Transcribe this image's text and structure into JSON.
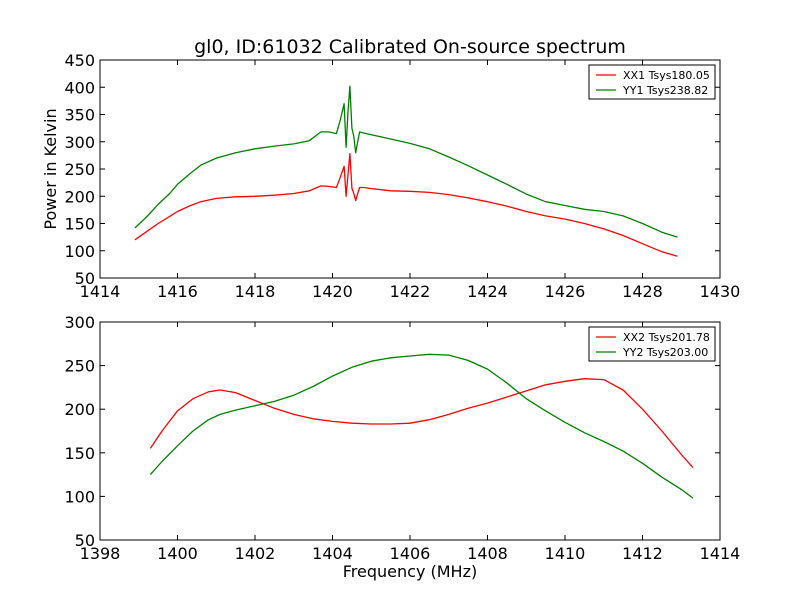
{
  "chart_data": [
    {
      "type": "line",
      "title": "gl0, ID:61032 Calibrated On-source spectrum",
      "xlabel": "",
      "ylabel": "Power in Kelvin",
      "xlim": [
        1414,
        1430
      ],
      "ylim": [
        50,
        450
      ],
      "xticks": [
        "1414",
        "1416",
        "1418",
        "1420",
        "1422",
        "1424",
        "1426",
        "1428",
        "1430"
      ],
      "yticks": [
        "50",
        "100",
        "150",
        "200",
        "250",
        "300",
        "350",
        "400",
        "450"
      ],
      "grid": false,
      "legend_position": "top-right",
      "series": [
        {
          "name": "XX1 Tsys180.05",
          "color": "#ff0000",
          "x": [
            1414.9,
            1415.2,
            1415.5,
            1415.8,
            1416.0,
            1416.3,
            1416.6,
            1417.0,
            1417.5,
            1418.0,
            1418.5,
            1419.0,
            1419.4,
            1419.7,
            1419.9,
            1420.1,
            1420.2,
            1420.3,
            1420.35,
            1420.4,
            1420.45,
            1420.5,
            1420.55,
            1420.6,
            1420.65,
            1420.7,
            1420.8,
            1421.0,
            1421.5,
            1422.0,
            1422.5,
            1423.0,
            1423.5,
            1424.0,
            1424.5,
            1425.0,
            1425.5,
            1426.0,
            1426.5,
            1427.0,
            1427.5,
            1428.0,
            1428.5,
            1428.9
          ],
          "y": [
            120,
            135,
            150,
            163,
            172,
            182,
            190,
            196,
            199,
            200,
            202,
            205,
            210,
            219,
            218,
            216,
            235,
            255,
            200,
            240,
            278,
            215,
            205,
            192,
            205,
            216,
            216,
            214,
            210,
            209,
            207,
            203,
            197,
            190,
            182,
            172,
            164,
            158,
            150,
            140,
            128,
            113,
            98,
            90
          ]
        },
        {
          "name": "YY1 Tsys238.82",
          "color": "#008000",
          "x": [
            1414.9,
            1415.2,
            1415.5,
            1415.8,
            1416.0,
            1416.3,
            1416.6,
            1417.0,
            1417.5,
            1418.0,
            1418.5,
            1419.0,
            1419.4,
            1419.7,
            1419.9,
            1420.1,
            1420.2,
            1420.3,
            1420.35,
            1420.4,
            1420.45,
            1420.5,
            1420.55,
            1420.6,
            1420.65,
            1420.7,
            1420.8,
            1421.0,
            1421.5,
            1422.0,
            1422.5,
            1423.0,
            1423.5,
            1424.0,
            1424.5,
            1425.0,
            1425.5,
            1426.0,
            1426.5,
            1427.0,
            1427.5,
            1428.0,
            1428.5,
            1428.9
          ],
          "y": [
            142,
            162,
            185,
            205,
            222,
            240,
            257,
            270,
            280,
            287,
            292,
            296,
            302,
            318,
            318,
            315,
            340,
            370,
            290,
            355,
            402,
            325,
            310,
            280,
            300,
            318,
            316,
            313,
            305,
            297,
            287,
            272,
            256,
            239,
            222,
            204,
            190,
            183,
            176,
            172,
            164,
            150,
            134,
            125
          ]
        }
      ]
    },
    {
      "type": "line",
      "title": "",
      "xlabel": "Frequency (MHz)",
      "ylabel": "",
      "xlim": [
        1398,
        1414
      ],
      "ylim": [
        50,
        300
      ],
      "xticks": [
        "1398",
        "1400",
        "1402",
        "1404",
        "1406",
        "1408",
        "1410",
        "1412",
        "1414"
      ],
      "yticks": [
        "50",
        "100",
        "150",
        "200",
        "250",
        "300"
      ],
      "grid": false,
      "legend_position": "top-right",
      "series": [
        {
          "name": "XX2 Tsys201.78",
          "color": "#ff0000",
          "x": [
            1399.3,
            1399.6,
            1400.0,
            1400.4,
            1400.8,
            1401.1,
            1401.5,
            1402.0,
            1402.5,
            1403.0,
            1403.5,
            1404.0,
            1404.5,
            1405.0,
            1405.5,
            1406.0,
            1406.5,
            1407.0,
            1407.5,
            1408.0,
            1408.5,
            1409.0,
            1409.5,
            1410.0,
            1410.5,
            1411.0,
            1411.5,
            1412.0,
            1412.5,
            1413.0,
            1413.3
          ],
          "y": [
            155,
            175,
            198,
            212,
            220,
            222,
            219,
            210,
            201,
            194,
            189,
            186,
            184,
            183,
            183,
            184,
            188,
            194,
            201,
            207,
            214,
            221,
            228,
            232,
            235,
            234,
            222,
            200,
            175,
            148,
            133
          ]
        },
        {
          "name": "YY2 Tsys203.00",
          "color": "#008000",
          "x": [
            1399.3,
            1399.6,
            1400.0,
            1400.4,
            1400.8,
            1401.1,
            1401.5,
            1402.0,
            1402.5,
            1403.0,
            1403.5,
            1404.0,
            1404.5,
            1405.0,
            1405.5,
            1406.0,
            1406.5,
            1407.0,
            1407.5,
            1408.0,
            1408.5,
            1409.0,
            1409.5,
            1410.0,
            1410.5,
            1411.0,
            1411.5,
            1412.0,
            1412.5,
            1413.0,
            1413.3
          ],
          "y": [
            125,
            140,
            158,
            175,
            188,
            194,
            199,
            204,
            209,
            216,
            226,
            238,
            248,
            255,
            259,
            261,
            263,
            262,
            256,
            246,
            230,
            212,
            198,
            185,
            173,
            163,
            152,
            138,
            122,
            108,
            98
          ]
        }
      ]
    }
  ]
}
